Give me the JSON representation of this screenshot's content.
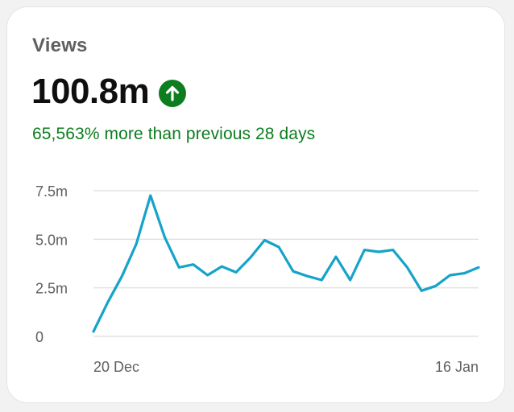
{
  "card": {
    "title": "Views",
    "value": "100.8m",
    "trend_icon": "arrow-up-circle-icon",
    "comparison": "65,563% more than previous 28 days",
    "accent_color": "#0d7d1f",
    "line_color": "#16a3c9"
  },
  "chart_data": {
    "type": "line",
    "title": "Views",
    "xlabel": "",
    "ylabel": "",
    "ylim": [
      0,
      7.5
    ],
    "y_unit": "millions",
    "y_ticks": [
      {
        "value": 0,
        "label": "0"
      },
      {
        "value": 2.5,
        "label": "2.5m"
      },
      {
        "value": 5.0,
        "label": "5.0m"
      },
      {
        "value": 7.5,
        "label": "7.5m"
      }
    ],
    "x_tick_labels": [
      {
        "index": 0,
        "label": "20 Dec"
      },
      {
        "index": 27,
        "label": "16 Jan"
      }
    ],
    "series": [
      {
        "name": "Views",
        "values": [
          0.25,
          1.75,
          3.1,
          4.75,
          7.25,
          5.1,
          3.55,
          3.7,
          3.15,
          3.6,
          3.3,
          4.05,
          4.95,
          4.6,
          3.35,
          3.1,
          2.9,
          4.1,
          2.9,
          4.45,
          4.35,
          4.45,
          3.55,
          2.35,
          2.6,
          3.15,
          3.25,
          3.55
        ]
      }
    ]
  }
}
